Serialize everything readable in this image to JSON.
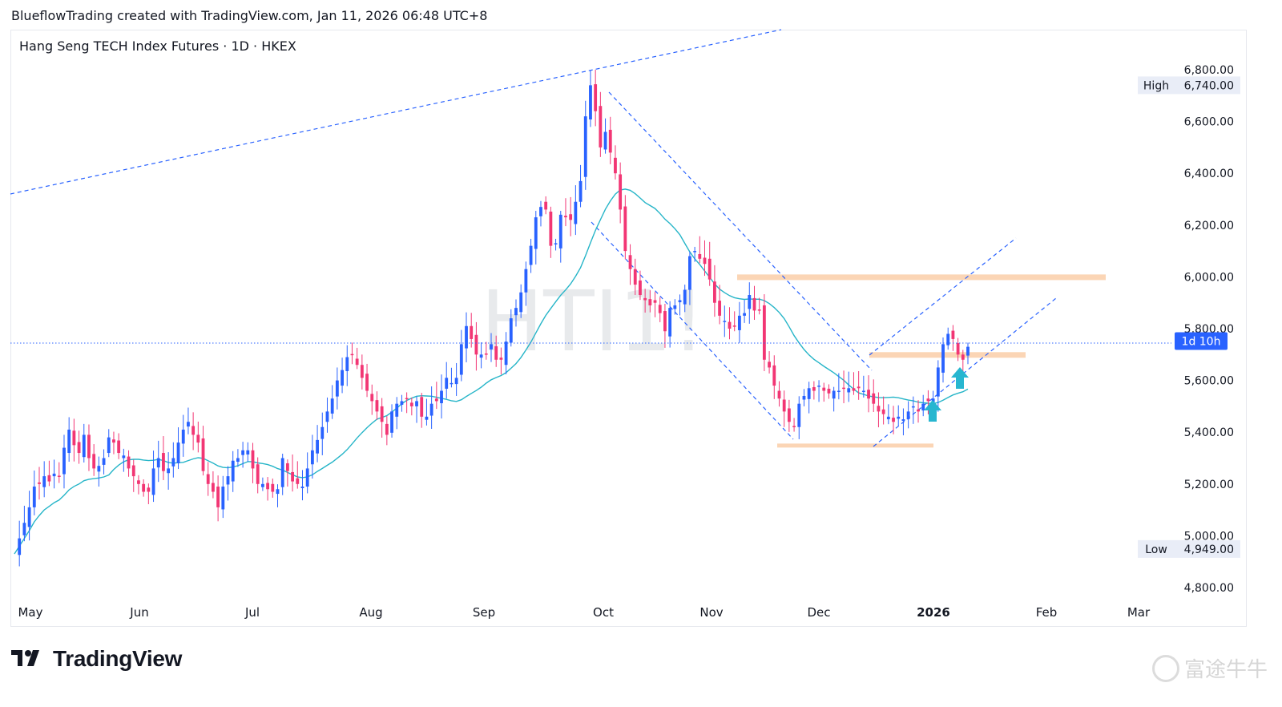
{
  "header": {
    "caption": "BlueflowTrading created with TradingView.com, Jan 11, 2026 06:48 UTC+8"
  },
  "symbol": {
    "title": "Hang Seng TECH Index Futures · 1D · HKEX",
    "watermark": "HTI1!"
  },
  "brand": {
    "name": "TradingView",
    "watermark_cn": "富途牛牛"
  },
  "colors": {
    "up": "#2962ff",
    "down": "#f23674",
    "ma": "#26b5c8",
    "trendline": "#2962ff",
    "zone": "#fbd5b5",
    "arrow": "#27b6d0",
    "current_price_badge": "#2962ff"
  },
  "chart_data": {
    "type": "candlestick",
    "title": "Hang Seng TECH Index Futures · 1D · HKEX",
    "y_axis": {
      "ticks": [
        "6,800.00",
        "6,600.00",
        "6,400.00",
        "6,200.00",
        "6,000.00",
        "5,800.00",
        "5,600.00",
        "5,400.00",
        "5,200.00",
        "5,000.00",
        "4,800.00"
      ],
      "range": [
        4750,
        6880
      ]
    },
    "x_axis": {
      "ticks": [
        "May",
        "Jun",
        "Jul",
        "Aug",
        "Sep",
        "Oct",
        "Nov",
        "Dec",
        "2026",
        "Feb",
        "Mar"
      ]
    },
    "high_label": {
      "text": "High",
      "value": "6,740.00"
    },
    "low_label": {
      "text": "Low",
      "value": "4,949.00"
    },
    "current_price_label": "1d 10h",
    "current_price": 5752,
    "closes_approx": [
      4930,
      4990,
      5050,
      5110,
      5190,
      5200,
      5230,
      5210,
      5240,
      5230,
      5340,
      5410,
      5350,
      5320,
      5390,
      5300,
      5260,
      5270,
      5300,
      5380,
      5360,
      5320,
      5310,
      5260,
      5230,
      5200,
      5170,
      5170,
      5260,
      5300,
      5250,
      5260,
      5300,
      5360,
      5410,
      5440,
      5390,
      5360,
      5250,
      5200,
      5170,
      5110,
      5190,
      5230,
      5290,
      5300,
      5330,
      5330,
      5260,
      5200,
      5200,
      5180,
      5170,
      5180,
      5300,
      5250,
      5210,
      5200,
      5190,
      5260,
      5330,
      5370,
      5420,
      5480,
      5530,
      5600,
      5640,
      5690,
      5700,
      5660,
      5610,
      5560,
      5520,
      5480,
      5440,
      5390,
      5480,
      5510,
      5520,
      5530,
      5500,
      5520,
      5460,
      5460,
      5510,
      5520,
      5560,
      5610,
      5590,
      5610,
      5740,
      5810,
      5760,
      5700,
      5700,
      5700,
      5740,
      5680,
      5680,
      5750,
      5840,
      5880,
      5940,
      6030,
      6120,
      6230,
      6270,
      6260,
      6120,
      6130,
      6240,
      6230,
      6220,
      6290,
      6370,
      6620,
      6740,
      6640,
      6500,
      6560,
      6480,
      6400,
      6260,
      6100,
      6030,
      5970,
      5930,
      5910,
      5890,
      5900,
      5860,
      5790,
      5880,
      5890,
      5910,
      5950,
      6080,
      6100,
      6070,
      6050,
      5990,
      5900,
      5850,
      5830,
      5800,
      5810,
      5850,
      5860,
      5930,
      5870,
      5870,
      5680,
      5650,
      5580,
      5530,
      5480,
      5440,
      5420,
      5510,
      5540,
      5570,
      5560,
      5580,
      5560,
      5550,
      5560,
      5560,
      5570,
      5570,
      5560,
      5570,
      5560,
      5530,
      5510,
      5480,
      5470,
      5460,
      5440,
      5460,
      5450,
      5480,
      5500,
      5480,
      5510,
      5520,
      5530,
      5650,
      5740,
      5780,
      5760,
      5700,
      5680,
      5730
    ]
  },
  "annotations": {
    "long_trendline": "dashed",
    "descending_channel": "dashed",
    "ascending_channel": "dashed",
    "resistance_zone_price": 6000,
    "mid_zone_price": 5700,
    "support_zone_price": 5350
  }
}
